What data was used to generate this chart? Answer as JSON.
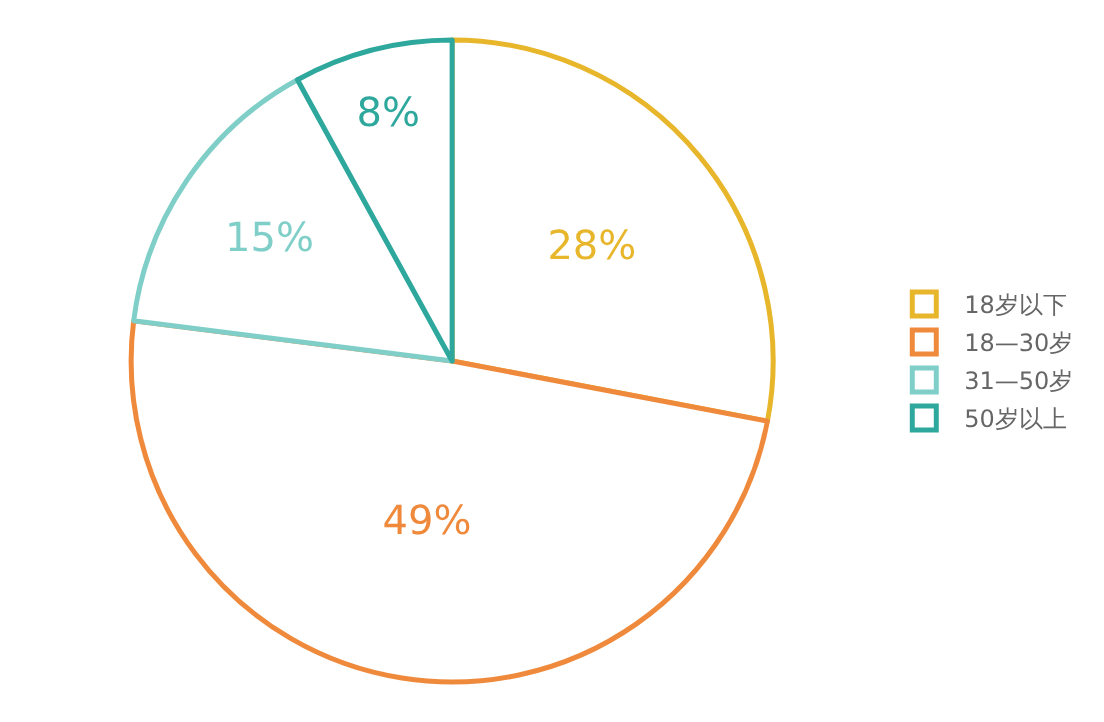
{
  "chart_data": {
    "type": "pie",
    "categories": [
      "18岁以下",
      "18—30岁",
      "31—50岁",
      "50岁以上"
    ],
    "values": [
      28,
      49,
      15,
      8
    ],
    "value_labels": [
      "28%",
      "49%",
      "15%",
      "8%"
    ],
    "colors": [
      "#e8b62a",
      "#ef8a3c",
      "#7fcfc8",
      "#2ea79c"
    ],
    "legend": "right"
  }
}
